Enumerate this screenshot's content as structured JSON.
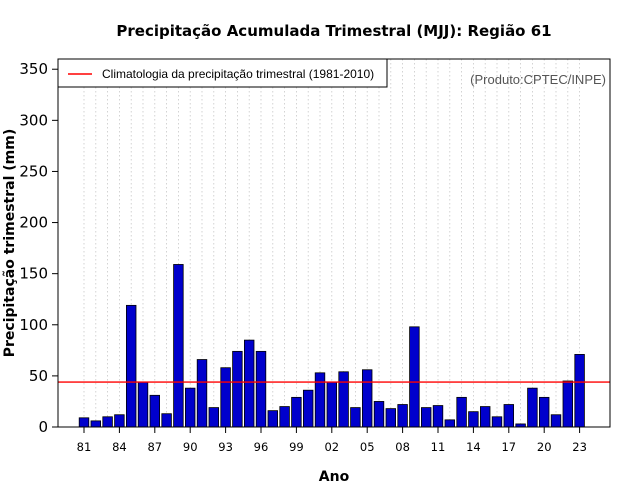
{
  "chart_data": {
    "type": "bar",
    "title": "Precipitação Acumulada Trimestral (MJJ): Região 61",
    "xlabel": "Ano",
    "ylabel": "Precipitação trimestral (mm)",
    "ylim": [
      0,
      360
    ],
    "yticks": [
      0,
      50,
      100,
      150,
      200,
      250,
      300,
      350
    ],
    "grid": "vertical dotted",
    "legend_position": "top-left",
    "annotation": "(Produto:CPTEC/INPE)",
    "bar_color": "#0000cc",
    "reference_color": "#ff0000",
    "categories": [
      "1981",
      "1982",
      "1983",
      "1984",
      "1985",
      "1986",
      "1987",
      "1988",
      "1989",
      "1990",
      "1991",
      "1992",
      "1993",
      "1994",
      "1995",
      "1996",
      "1997",
      "1998",
      "1999",
      "2000",
      "2001",
      "2002",
      "2003",
      "2004",
      "2005",
      "2006",
      "2007",
      "2008",
      "2009",
      "2010",
      "2011",
      "2012",
      "2013",
      "2014",
      "2015",
      "2016",
      "2017",
      "2018",
      "2019",
      "2020",
      "2021",
      "2022",
      "2023"
    ],
    "x_tick_labels": [
      {
        "index": 0,
        "label": "81"
      },
      {
        "index": 3,
        "label": "84"
      },
      {
        "index": 6,
        "label": "87"
      },
      {
        "index": 9,
        "label": "90"
      },
      {
        "index": 12,
        "label": "93"
      },
      {
        "index": 15,
        "label": "96"
      },
      {
        "index": 18,
        "label": "99"
      },
      {
        "index": 21,
        "label": "02"
      },
      {
        "index": 24,
        "label": "05"
      },
      {
        "index": 27,
        "label": "08"
      },
      {
        "index": 30,
        "label": "11"
      },
      {
        "index": 33,
        "label": "14"
      },
      {
        "index": 36,
        "label": "17"
      },
      {
        "index": 39,
        "label": "20"
      },
      {
        "index": 42,
        "label": "23"
      }
    ],
    "series": [
      {
        "name": "Precipitação trimestral",
        "values": [
          9,
          6,
          10,
          12,
          119,
          44,
          31,
          13,
          159,
          38,
          66,
          19,
          58,
          74,
          85,
          74,
          16,
          20,
          29,
          36,
          53,
          44,
          54,
          19,
          56,
          25,
          18,
          22,
          98,
          19,
          21,
          7,
          29,
          15,
          20,
          10,
          22,
          3,
          38,
          29,
          12,
          45,
          71
        ]
      }
    ],
    "reference_line": {
      "name": "Climatologia da precipitação trimestral (1981-2010)",
      "value": 44
    }
  }
}
